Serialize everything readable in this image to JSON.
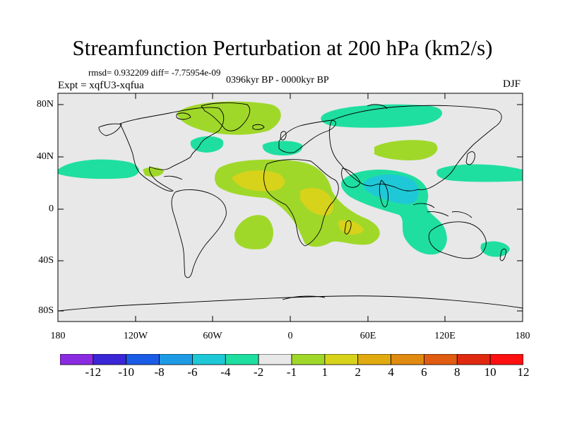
{
  "title": "Streamfunction Perturbation at 200 hPa (km2/s)",
  "stats_line": "rmsd= 0.932209 diff= -7.75954e-09",
  "period": "0396kyr BP - 0000kyr BP",
  "experiment": "Expt = xqfU3-xqfua",
  "season": "DJF",
  "axes": {
    "lat_labels": [
      "80N",
      "40N",
      "0",
      "40S",
      "80S"
    ],
    "lon_labels": [
      "180",
      "120W",
      "60W",
      "0",
      "60E",
      "120E",
      "180"
    ]
  },
  "colorbar": {
    "colors": [
      "#8a2be2",
      "#3a26d6",
      "#1a5ce6",
      "#1f9be6",
      "#1fc8d6",
      "#1fdfa0",
      "#e8e8e8",
      "#a0d82a",
      "#d7d21a",
      "#e0aa10",
      "#e08a10",
      "#e05c10",
      "#e02a10",
      "#ff1010"
    ],
    "labels": [
      "-12",
      "-10",
      "-8",
      "-6",
      "-4",
      "-2",
      "-1",
      "1",
      "2",
      "4",
      "6",
      "8",
      "10",
      "12"
    ]
  },
  "legend_colors": {
    "neg2": "#1fdfa0",
    "neg4": "#1fc8d6",
    "pos2": "#a0d82a",
    "pos4": "#d7d21a",
    "neutral": "#e8e8e8",
    "coast": "#000000"
  }
}
